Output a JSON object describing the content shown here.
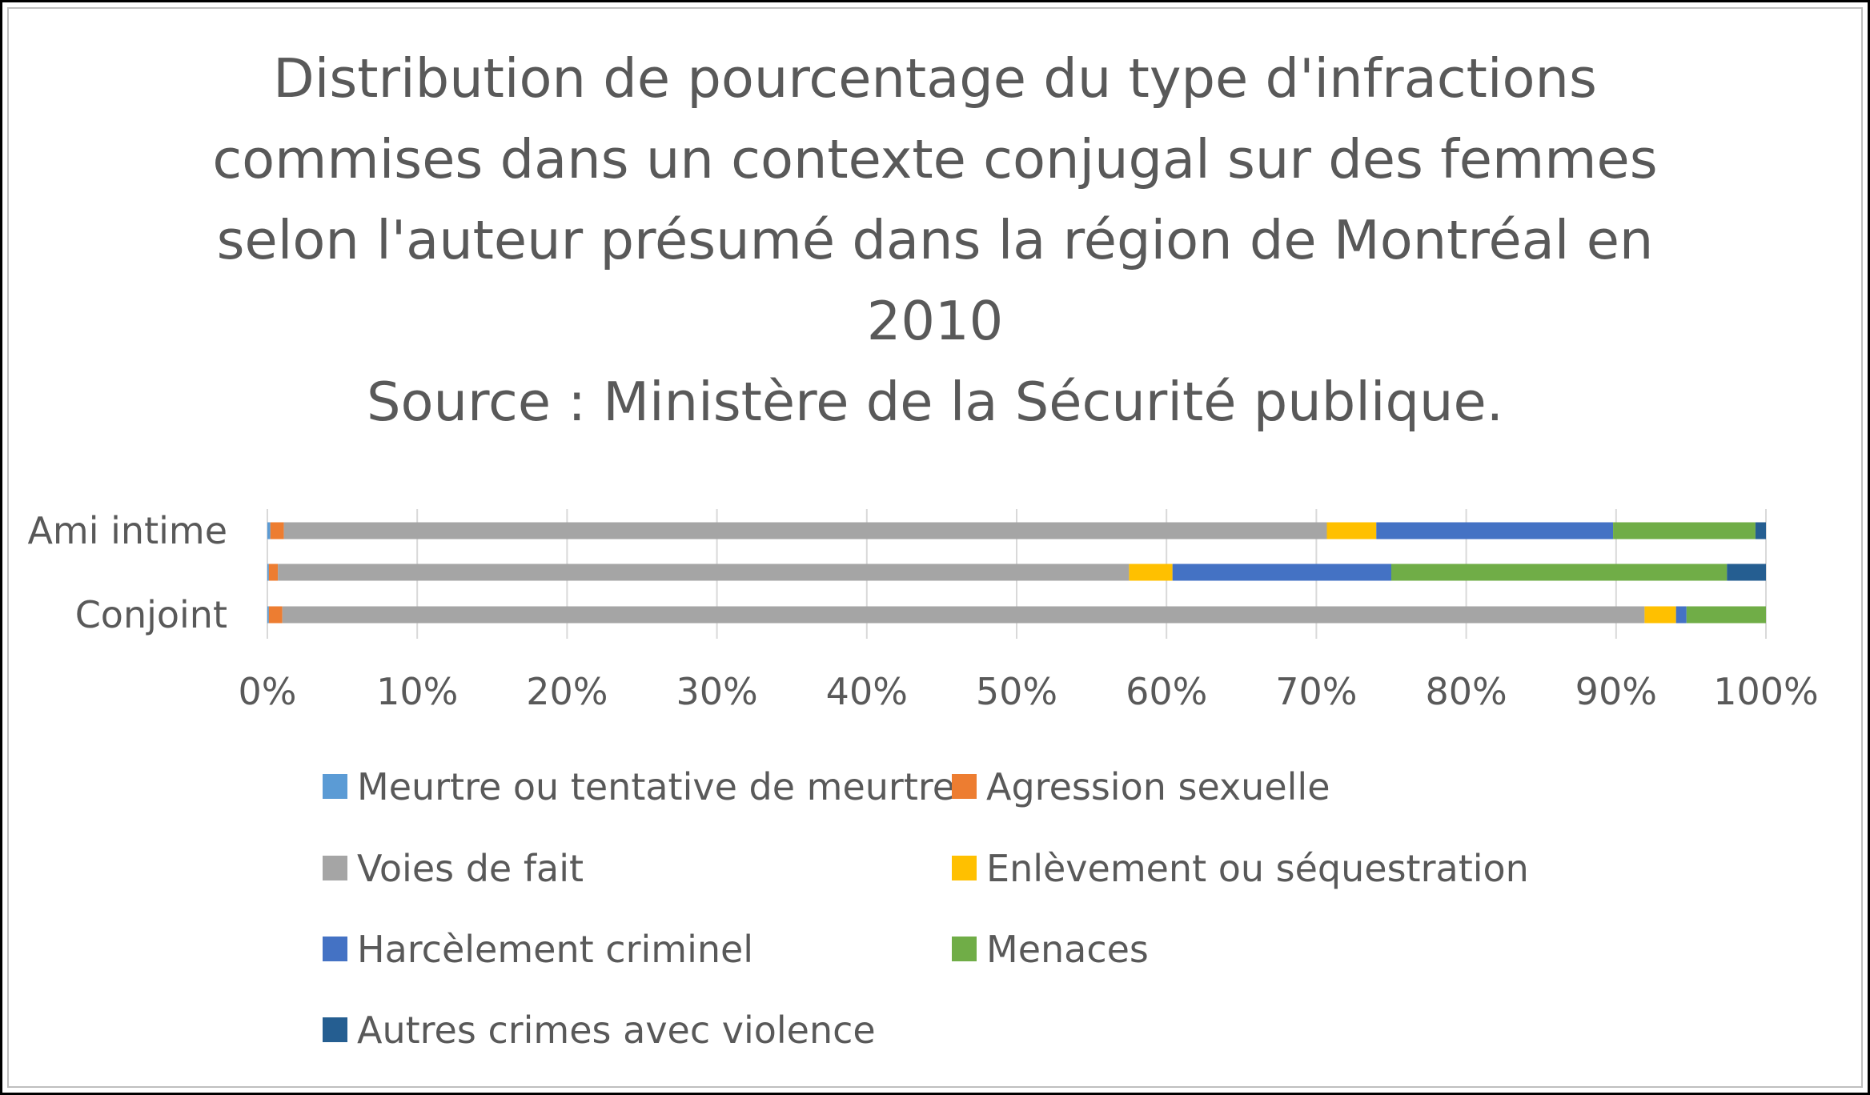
{
  "chart_data": {
    "type": "bar",
    "orientation": "horizontal",
    "stacked": "percent",
    "title_lines": [
      "Distribution de pourcentage du type d'infractions",
      "commises dans un contexte conjugal sur des femmes",
      "selon l'auteur présumé  dans la région de Montréal en",
      "2010",
      "Source : Ministère de la Sécurité publique."
    ],
    "categories": [
      "Ami intime",
      "",
      "Conjoint"
    ],
    "x_ticks": [
      "0%",
      "10%",
      "20%",
      "30%",
      "40%",
      "50%",
      "60%",
      "70%",
      "80%",
      "90%",
      "100%"
    ],
    "xlim": [
      0,
      100
    ],
    "grid": "vertical",
    "legend_position": "bottom",
    "series": [
      {
        "name": "Meurtre ou tentative de meurtre",
        "color": "#5b9bd5",
        "values": [
          0.2,
          0.1,
          0.1
        ]
      },
      {
        "name": "Agression sexuelle",
        "color": "#ed7d31",
        "values": [
          0.9,
          0.6,
          0.9
        ]
      },
      {
        "name": "Voies de fait",
        "color": "#a5a5a5",
        "values": [
          69.6,
          56.8,
          90.9
        ]
      },
      {
        "name": "Enlèvement ou séquestration",
        "color": "#ffc000",
        "values": [
          3.3,
          2.9,
          2.1
        ]
      },
      {
        "name": "Harcèlement criminel",
        "color": "#4472c4",
        "values": [
          15.8,
          14.6,
          0.7
        ]
      },
      {
        "name": "Menaces",
        "color": "#70ad47",
        "values": [
          9.5,
          22.4,
          5.3
        ]
      },
      {
        "name": "Autres crimes avec violence",
        "color": "#255e91",
        "values": [
          0.7,
          2.6,
          0.0
        ]
      }
    ]
  }
}
